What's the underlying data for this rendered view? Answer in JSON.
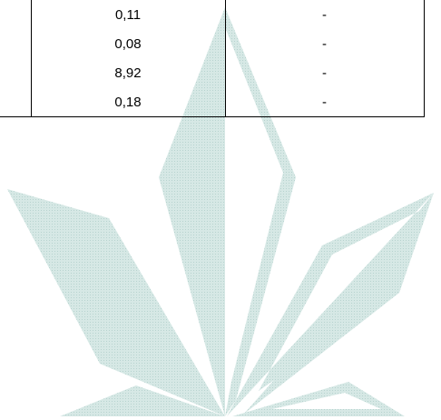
{
  "table": {
    "rows": [
      {
        "value": "0,11",
        "other": "-"
      },
      {
        "value": "0,08",
        "other": "-"
      },
      {
        "value": "8,92",
        "other": "-"
      },
      {
        "value": "0,18",
        "other": "-"
      }
    ]
  },
  "colors": {
    "watermark": "#cfe3e0",
    "watermark_dark": "#b9d6d2",
    "lines": "#000000",
    "text": "#000000"
  },
  "watermark": {
    "icon": "leaf-logo-watermark-icon"
  }
}
